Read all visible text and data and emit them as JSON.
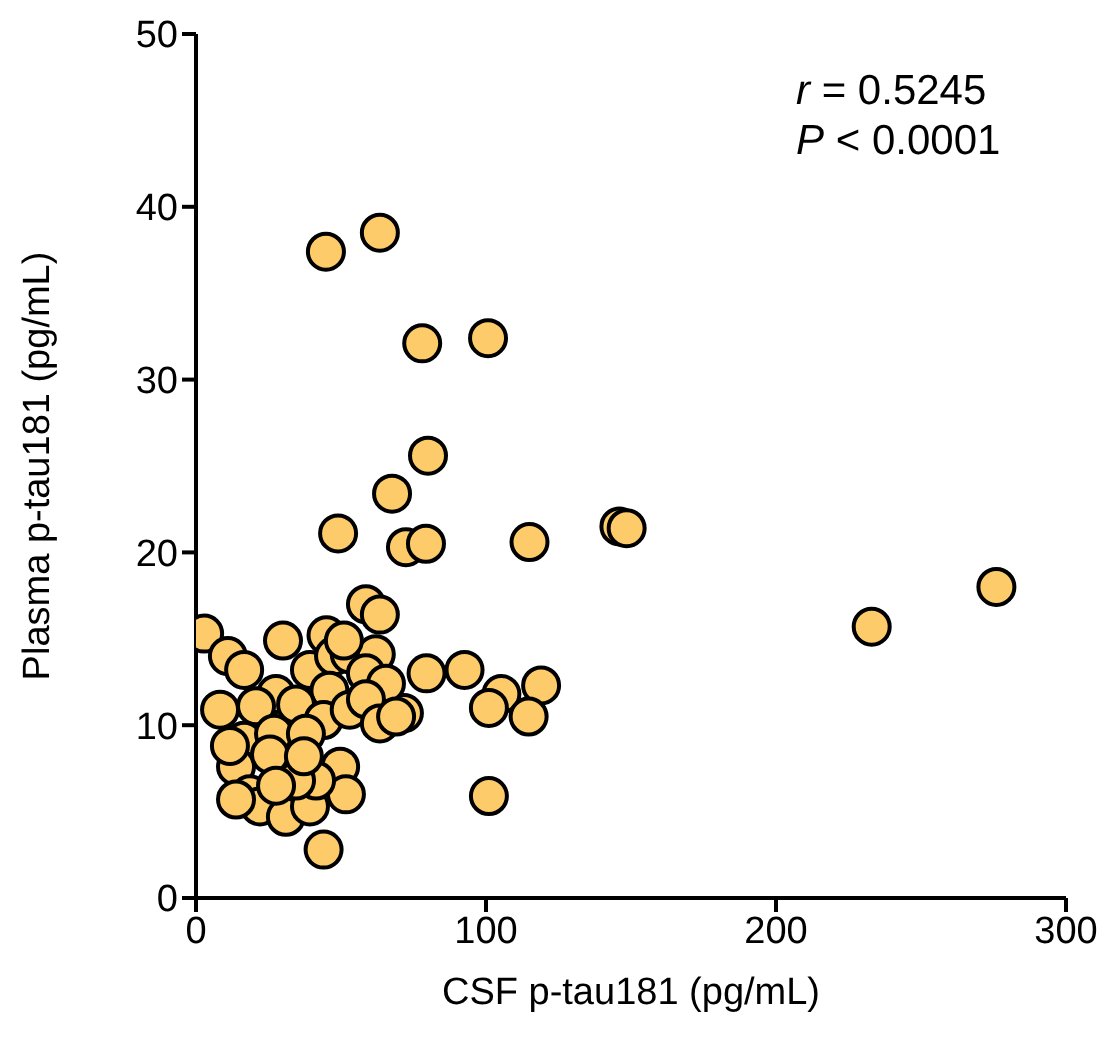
{
  "chart_data": {
    "type": "scatter",
    "xlabel": "CSF p-tau181 (pg/mL)",
    "ylabel": "Plasma p-tau181 (pg/mL)",
    "xlim": [
      0,
      300
    ],
    "xticks": [
      0,
      100,
      200,
      300
    ],
    "ylim": [
      0,
      50
    ],
    "yticks": [
      0,
      10,
      20,
      30,
      40,
      50
    ],
    "grid": false,
    "legend": false,
    "marker": "circle",
    "annotations": [
      "r = 0.5245",
      "P < 0.0001"
    ],
    "series": [
      {
        "color": "#fecb6a",
        "x": [
          44.8,
          63.4,
          78,
          100.7,
          80,
          67.6,
          49,
          72.4,
          79.3,
          115,
          146,
          148.5,
          276,
          233,
          79.5,
          92.6,
          105.3,
          101,
          119,
          114.7,
          71.7,
          101,
          2.8,
          11,
          16.6,
          30,
          45,
          58.6,
          63.4,
          39.3,
          47.6,
          53,
          62,
          58.6,
          65.5,
          46,
          27.6,
          34.5,
          8.3,
          20.7,
          44,
          53,
          58.6,
          63.4,
          69,
          16.6,
          26.9,
          37.9,
          13.8,
          49.7,
          51.7,
          18.6,
          22,
          31,
          39.3,
          44,
          41.4,
          11.7,
          25.5,
          34.5,
          27.6,
          37.2,
          13.8,
          51
        ],
        "values": [
          37.4,
          38.5,
          32.1,
          32.4,
          25.6,
          23.4,
          21.1,
          20.3,
          20.5,
          20.6,
          21.5,
          21.4,
          18,
          15.7,
          13,
          13.2,
          11.8,
          11,
          12.3,
          10.5,
          10.7,
          5.9,
          15.3,
          14,
          13.2,
          14.9,
          15.2,
          17,
          16.4,
          13.2,
          14,
          14.1,
          14.1,
          13,
          12.4,
          12,
          11.8,
          11.2,
          10.9,
          11.1,
          10.3,
          10.9,
          11.5,
          10.1,
          10.5,
          9.1,
          9.5,
          9.5,
          7.6,
          7.6,
          6,
          6,
          5.3,
          4.7,
          5.3,
          2.8,
          6.8,
          8.8,
          8.3,
          6.8,
          6.5,
          8.2,
          5.7,
          14.9
        ]
      }
    ]
  }
}
